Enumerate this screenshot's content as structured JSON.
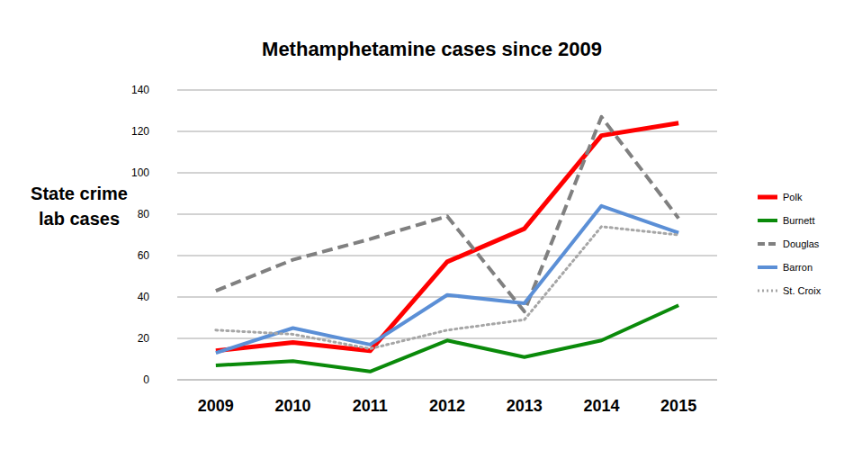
{
  "chart_data": {
    "type": "line",
    "title": "Methamphetamine cases since 2009",
    "y_label": "State crime lab cases",
    "categories": [
      "2009",
      "2010",
      "2011",
      "2012",
      "2013",
      "2014",
      "2015"
    ],
    "series": [
      {
        "name": "Polk",
        "color": "#ff0000",
        "line_style": "solid",
        "values": [
          14,
          18,
          14,
          57,
          73,
          118,
          124
        ]
      },
      {
        "name": "Burnett",
        "color": "#0a8a0a",
        "line_style": "solid",
        "values": [
          7,
          9,
          4,
          19,
          11,
          19,
          36
        ]
      },
      {
        "name": "Douglas",
        "color": "#808080",
        "line_style": "dashed",
        "values": [
          43,
          58,
          68,
          79,
          33,
          127,
          78
        ]
      },
      {
        "name": "Barron",
        "color": "#5b8fd6",
        "line_style": "solid",
        "values": [
          13,
          25,
          17,
          41,
          37,
          84,
          71
        ]
      },
      {
        "name": "St. Croix",
        "color": "#a6a6a6",
        "line_style": "dotted",
        "values": [
          24,
          22,
          15,
          24,
          29,
          74,
          70
        ]
      }
    ],
    "ylim": [
      0,
      140
    ],
    "yticks": [
      0,
      20,
      40,
      60,
      80,
      100,
      120,
      140
    ],
    "grid": true,
    "legend": "right"
  }
}
